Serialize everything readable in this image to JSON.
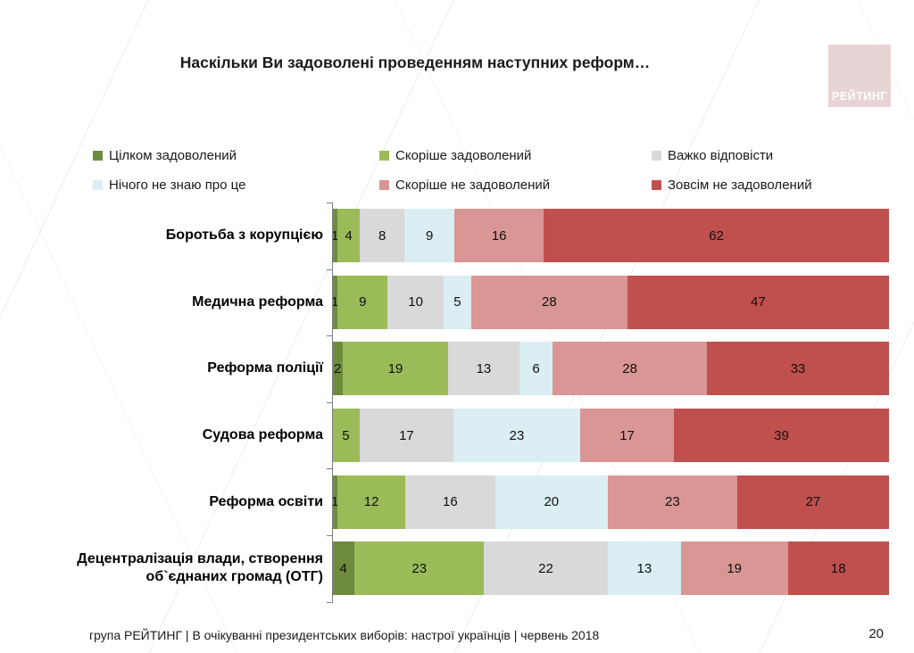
{
  "title": "Наскільки Ви задоволені проведенням наступних реформ…",
  "logo": {
    "text": "РЕЙТИНГ",
    "bg_color": "#e8d4d4",
    "text_color": "#ffffff"
  },
  "chart_data": {
    "type": "bar",
    "stacked": true,
    "orientation": "horizontal",
    "title": "Наскільки Ви задоволені проведенням наступних реформ…",
    "xlim": [
      0,
      100
    ],
    "value_labels": true,
    "legend_position": "top",
    "grid": false,
    "categories": [
      "Боротьба з корупцією",
      "Медична реформа",
      "Реформа поліції",
      "Судова реформа",
      "Реформа освіти",
      "Децентралізація влади, створення об`єднаних громад (ОТГ)"
    ],
    "series": [
      {
        "name": "Цілком задоволений",
        "color": "#6e8b3e",
        "values": [
          1,
          1,
          2,
          0,
          1,
          4
        ]
      },
      {
        "name": "Скоріше задоволений",
        "color": "#9bbb59",
        "values": [
          4,
          9,
          19,
          5,
          12,
          23
        ]
      },
      {
        "name": "Важко відповісти",
        "color": "#d9d9d9",
        "values": [
          8,
          10,
          13,
          17,
          16,
          22
        ]
      },
      {
        "name": "Нічого не знаю про це",
        "color": "#daeef3",
        "values": [
          9,
          5,
          6,
          23,
          20,
          13
        ]
      },
      {
        "name": "Скоріше не задоволений",
        "color": "#d99694",
        "values": [
          16,
          28,
          28,
          17,
          23,
          19
        ]
      },
      {
        "name": "Зовсім не задоволений",
        "color": "#c0504d",
        "values": [
          62,
          47,
          33,
          39,
          27,
          18
        ]
      }
    ]
  },
  "footer": {
    "source": "група РЕЙТИНГ | В очікуванні президентських виборів: настрої українців | червень 2018",
    "page": "20"
  }
}
